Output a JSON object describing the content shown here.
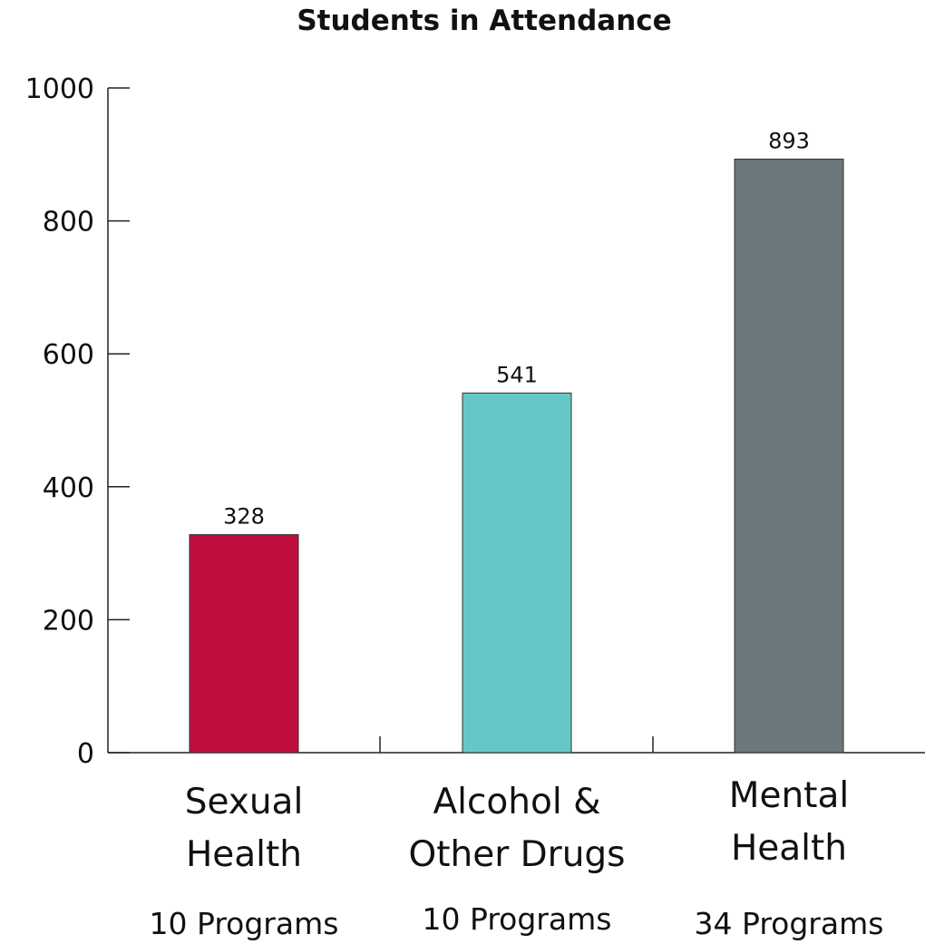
{
  "chart_data": {
    "type": "bar",
    "title": "Students in Attendance",
    "xlabel": "",
    "ylabel": "",
    "ylim": [
      0,
      1000
    ],
    "yticks": [
      0,
      200,
      400,
      600,
      800,
      1000
    ],
    "grid": false,
    "categories": [
      {
        "label_lines": [
          "Sexual",
          "Health"
        ],
        "sublabel": "10 Programs"
      },
      {
        "label_lines": [
          "Alcohol &",
          "Other Drugs"
        ],
        "sublabel": "10 Programs"
      },
      {
        "label_lines": [
          "Mental",
          "Health"
        ],
        "sublabel": "34 Programs"
      }
    ],
    "values": [
      328,
      541,
      893
    ],
    "colors": [
      "#bf0d3e",
      "#66c8c6",
      "#6a777b"
    ]
  }
}
